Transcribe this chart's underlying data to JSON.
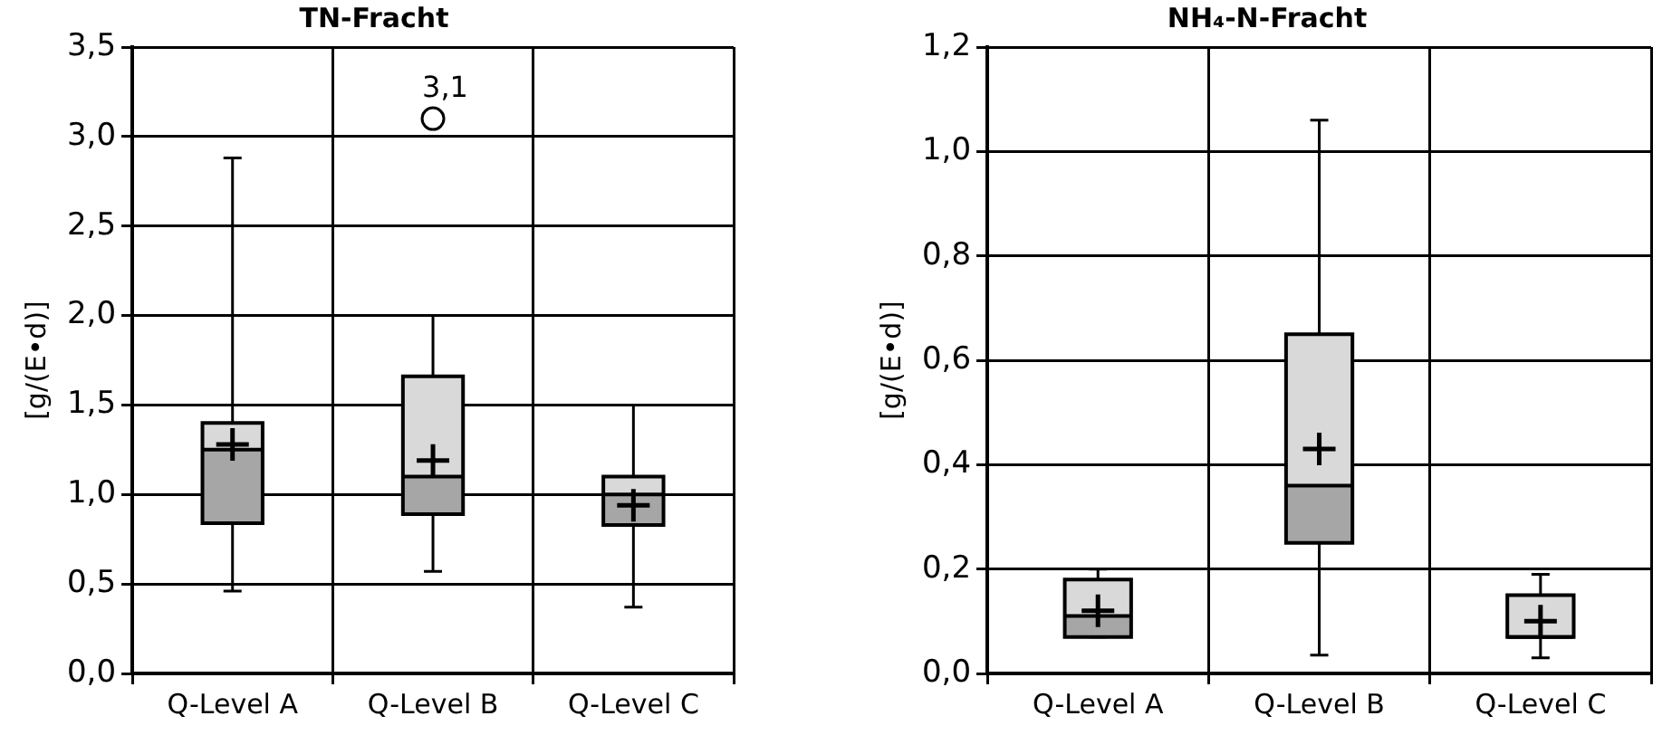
{
  "chart_data": [
    {
      "type": "box",
      "title": "TN-Fracht",
      "ylabel": "[g/(E•d)]",
      "categories": [
        "Q-Level A",
        "Q-Level B",
        "Q-Level C"
      ],
      "series": [
        {
          "color": "#d9d9d9",
          "boxes": [
            {
              "low": 0.46,
              "q1": 0.84,
              "median": 1.25,
              "q3": 1.4,
              "high": 2.88,
              "mean": 1.28
            },
            {
              "low": 0.57,
              "q1": 0.89,
              "median": 1.1,
              "q3": 1.66,
              "high": 2.0,
              "mean": 1.19,
              "outliers": [
                3.1
              ]
            },
            {
              "low": 0.37,
              "q1": 0.83,
              "median": 1.0,
              "q3": 1.1,
              "high": 1.5,
              "mean": 0.94
            }
          ]
        }
      ],
      "ylim": [
        0,
        3.5
      ],
      "yticks": [
        {
          "value": 0,
          "label": "0,0"
        },
        {
          "value": 0.5,
          "label": "0,5"
        },
        {
          "value": 1,
          "label": "1,0"
        },
        {
          "value": 1.5,
          "label": "1,5"
        },
        {
          "value": 2,
          "label": "2,0"
        },
        {
          "value": 2.5,
          "label": "2,5"
        },
        {
          "value": 3,
          "label": "3,0"
        },
        {
          "value": 3.5,
          "label": "3,5"
        }
      ],
      "grid": true,
      "annotations": [
        "3,1"
      ]
    },
    {
      "type": "box",
      "title": "NH₄-N-Fracht",
      "ylabel": "[g/(E•d)]",
      "categories": [
        "Q-Level A",
        "Q-Level B",
        "Q-Level C"
      ],
      "series": [
        {
          "color": "#d9d9d9",
          "boxes": [
            {
              "low": 0.07,
              "q1": 0.07,
              "median": 0.11,
              "q3": 0.18,
              "high": 0.2,
              "mean": 0.12
            },
            {
              "low": 0.035,
              "q1": 0.25,
              "median": 0.36,
              "q3": 0.65,
              "high": 1.06,
              "mean": 0.43
            },
            {
              "low": 0.03,
              "q1": 0.07,
              "median": 0.07,
              "q3": 0.15,
              "high": 0.19,
              "mean": 0.1
            }
          ]
        }
      ],
      "ylim": [
        0,
        1.2
      ],
      "yticks": [
        {
          "value": 0,
          "label": "0,0"
        },
        {
          "value": 0.2,
          "label": "0,2"
        },
        {
          "value": 0.4,
          "label": "0,4"
        },
        {
          "value": 0.6,
          "label": "0,6"
        },
        {
          "value": 0.8,
          "label": "0,8"
        },
        {
          "value": 1,
          "label": "1,0"
        },
        {
          "value": 1.2,
          "label": "1,2"
        }
      ],
      "grid": true
    }
  ]
}
